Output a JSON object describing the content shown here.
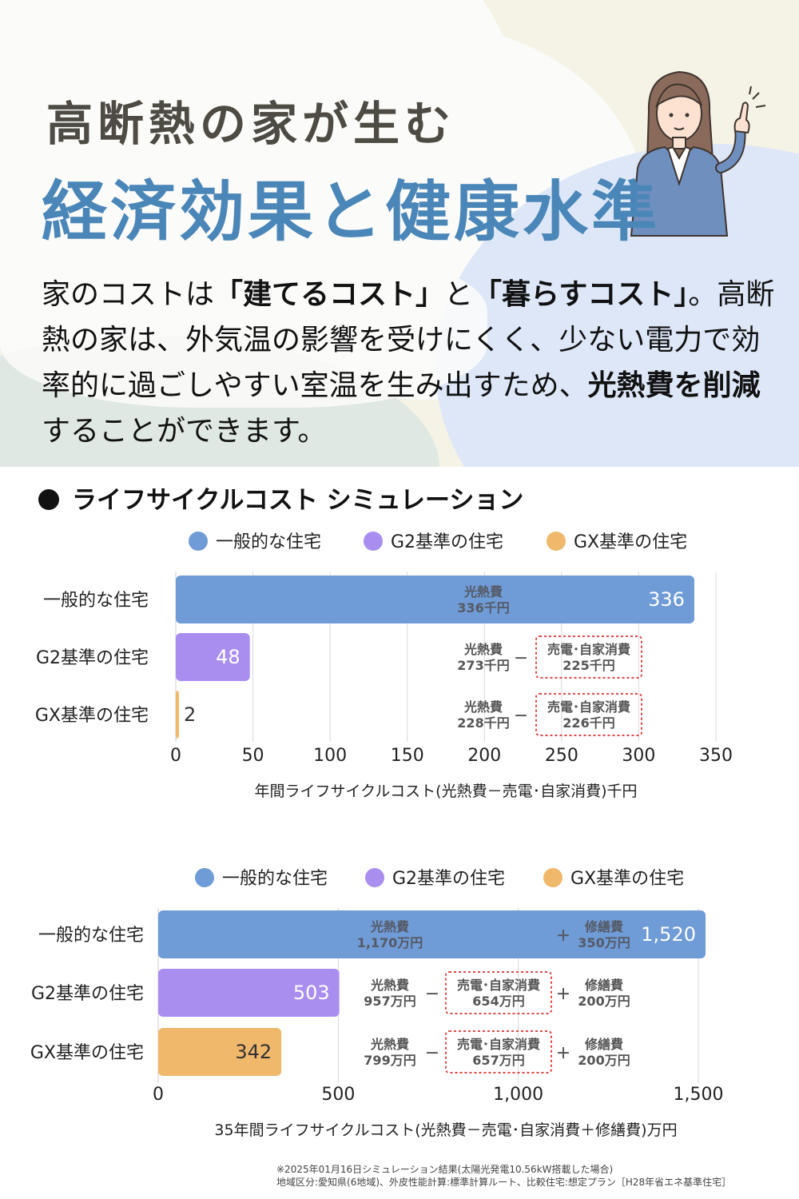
{
  "header": {
    "title_line1": "高断熱の家が生む",
    "title_line2": "経済効果と健康水準",
    "intro": [
      {
        "text": "家のコストは",
        "bold": false
      },
      {
        "text": "「建てるコスト」",
        "bold": true
      },
      {
        "text": "と",
        "bold": false
      },
      {
        "text": "「暮らすコスト」",
        "bold": true
      },
      {
        "text": "。高断熱の家は、外気温の影響を受けにくく、少ない電力で効率的に過ごしやすい室温を生み出すため、",
        "bold": false
      },
      {
        "text": "光熱費を削減",
        "bold": true
      },
      {
        "text": "することができます。",
        "bold": false
      }
    ]
  },
  "section_title": "ライフサイクルコスト シミュレーション",
  "colors": {
    "general": "#6f9bd6",
    "g2": "#a98ef0",
    "gx": "#f0b86b",
    "title_blue": "#4b86b8",
    "dash": "#e04848"
  },
  "chart_data": [
    {
      "type": "bar",
      "orientation": "horizontal",
      "legend": [
        "一般的な住宅",
        "G2基準の住宅",
        "GX基準の住宅"
      ],
      "categories": [
        "一般的な住宅",
        "G2基準の住宅",
        "GX基準の住宅"
      ],
      "values": [
        336,
        48,
        2
      ],
      "value_labels": [
        "336",
        "48",
        "2"
      ],
      "xlim": [
        0,
        350
      ],
      "xticks": [
        "0",
        "50",
        "100",
        "150",
        "200",
        "250",
        "300",
        "350"
      ],
      "xlabel": "年間ライフサイクルコスト(光熱費－売電･自家消費)千円",
      "annotations": [
        {
          "energy_label": "光熱費",
          "energy_value": "336千円"
        },
        {
          "energy_label": "光熱費",
          "energy_value": "273千円",
          "minus": "－",
          "sell_label": "売電･自家消費",
          "sell_value": "225千円"
        },
        {
          "energy_label": "光熱費",
          "energy_value": "228千円",
          "minus": "－",
          "sell_label": "売電･自家消費",
          "sell_value": "226千円"
        }
      ]
    },
    {
      "type": "bar",
      "orientation": "horizontal",
      "legend": [
        "一般的な住宅",
        "G2基準の住宅",
        "GX基準の住宅"
      ],
      "categories": [
        "一般的な住宅",
        "G2基準の住宅",
        "GX基準の住宅"
      ],
      "values": [
        1520,
        503,
        342
      ],
      "value_labels": [
        "1,520",
        "503",
        "342"
      ],
      "xlim": [
        0,
        1500
      ],
      "xticks": [
        "0",
        "500",
        "1,000",
        "1,500"
      ],
      "xlabel": "35年間ライフサイクルコスト(光熱費－売電･自家消費＋修繕費)万円",
      "annotations": [
        {
          "energy_label": "光熱費",
          "energy_value": "1,170万円",
          "plus": "＋",
          "repair_label": "修繕費",
          "repair_value": "350万円"
        },
        {
          "energy_label": "光熱費",
          "energy_value": "957万円",
          "minus": "－",
          "sell_label": "売電･自家消費",
          "sell_value": "654万円",
          "plus": "＋",
          "repair_label": "修繕費",
          "repair_value": "200万円"
        },
        {
          "energy_label": "光熱費",
          "energy_value": "799万円",
          "minus": "－",
          "sell_label": "売電･自家消費",
          "sell_value": "657万円",
          "plus": "＋",
          "repair_label": "修繕費",
          "repair_value": "200万円"
        }
      ]
    }
  ],
  "footnote": [
    "※2025年01月16日シミュレーション結果(太陽光発電10.56kW搭載した場合)",
    "地域区分:愛知県(6地域)、外皮性能計算:標準計算ルート、比較住宅:想定プラン［H28年省エネ基準住宅］"
  ]
}
